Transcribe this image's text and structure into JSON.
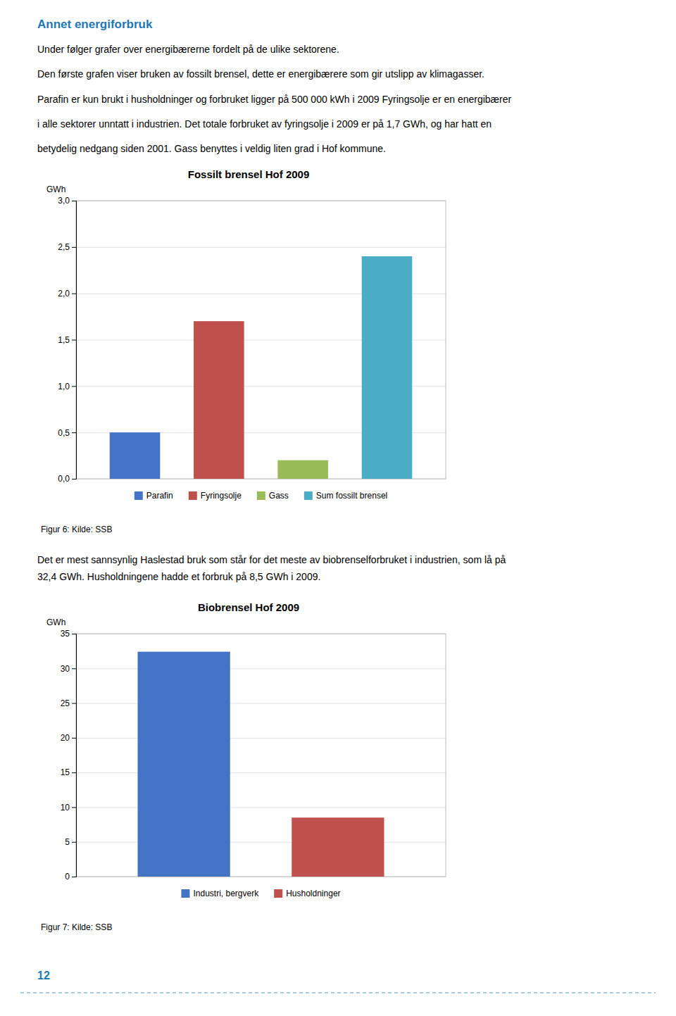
{
  "header": "Annet energiforbruk",
  "paragraphs": [
    "Under følger grafer over energibærerne fordelt på de ulike sektorene.",
    "Den første grafen viser bruken av fossilt brensel, dette er energibærere som gir utslipp av klimagasser.",
    "Parafin er kun brukt i husholdninger og forbruket ligger på 500 000 kWh i 2009 Fyringsolje er en energibærer",
    "i alle sektorer unntatt i industrien. Det totale forbruket av fyringsolje i 2009 er på 1,7 GWh, og har hatt en",
    "betydelig nedgang siden 2001. Gass benyttes i veldig liten grad i Hof kommune."
  ],
  "text_between": [
    "Det er mest sannsynlig Haslestad bruk som står for det meste av biobrenselforbruket i industrien, som lå på",
    "32,4 GWh. Husholdningene hadde et forbruk på 8,5 GWh i 2009."
  ],
  "page_number": "12",
  "chart_data": [
    {
      "type": "bar",
      "title": "Fossilt brensel Hof 2009",
      "y_label": "GWh",
      "categories": [
        "Parafin",
        "Fyringsolje",
        "Gass",
        "Sum fossilt brensel"
      ],
      "values": [
        0.5,
        1.7,
        0.2,
        2.4
      ],
      "colors": [
        "#4472c4",
        "#c0504d",
        "#9bbb59",
        "#4bacc6"
      ],
      "ylim": [
        0.0,
        3.0
      ],
      "yticks": [
        {
          "value": 0.0,
          "label": "0,0"
        },
        {
          "value": 0.5,
          "label": "0,5"
        },
        {
          "value": 1.0,
          "label": "1,0"
        },
        {
          "value": 1.5,
          "label": "1,5"
        },
        {
          "value": 2.0,
          "label": "2,0"
        },
        {
          "value": 2.5,
          "label": "2,5"
        },
        {
          "value": 3.0,
          "label": "3,0"
        }
      ],
      "grid": true,
      "legend": "bottom",
      "tick_labels": "y",
      "caption": "Figur 6: Kilde: SSB"
    },
    {
      "type": "bar",
      "title": "Biobrensel Hof 2009",
      "y_label": "GWh",
      "categories": [
        "Industri, bergverk",
        "Husholdninger"
      ],
      "values": [
        32.4,
        8.5
      ],
      "colors": [
        "#4472c4",
        "#c0504d"
      ],
      "ylim": [
        0,
        35
      ],
      "yticks": [
        0,
        5,
        10,
        15,
        20,
        25,
        30,
        35
      ],
      "grid": true,
      "legend": "bottom",
      "tick_labels": "y",
      "caption": "Figur 7: Kilde: SSB"
    }
  ]
}
